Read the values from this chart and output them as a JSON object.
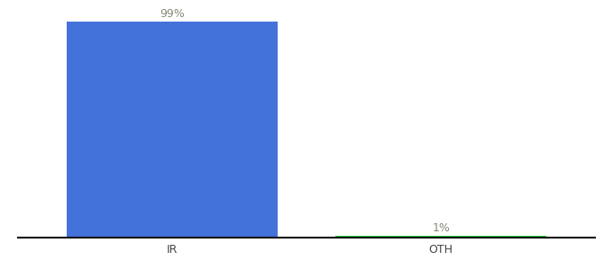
{
  "categories": [
    "IR",
    "OTH"
  ],
  "values": [
    99,
    1
  ],
  "bar_colors": [
    "#4472db",
    "#22cc44"
  ],
  "ylabel": "",
  "xlabel": "",
  "ylim": [
    0,
    105
  ],
  "background_color": "#ffffff",
  "label_fontsize": 9,
  "tick_fontsize": 9,
  "bar_width": 0.55,
  "value_labels": [
    "99%",
    "1%"
  ],
  "value_label_color": "#888877",
  "x_positions": [
    0.3,
    1.0
  ]
}
